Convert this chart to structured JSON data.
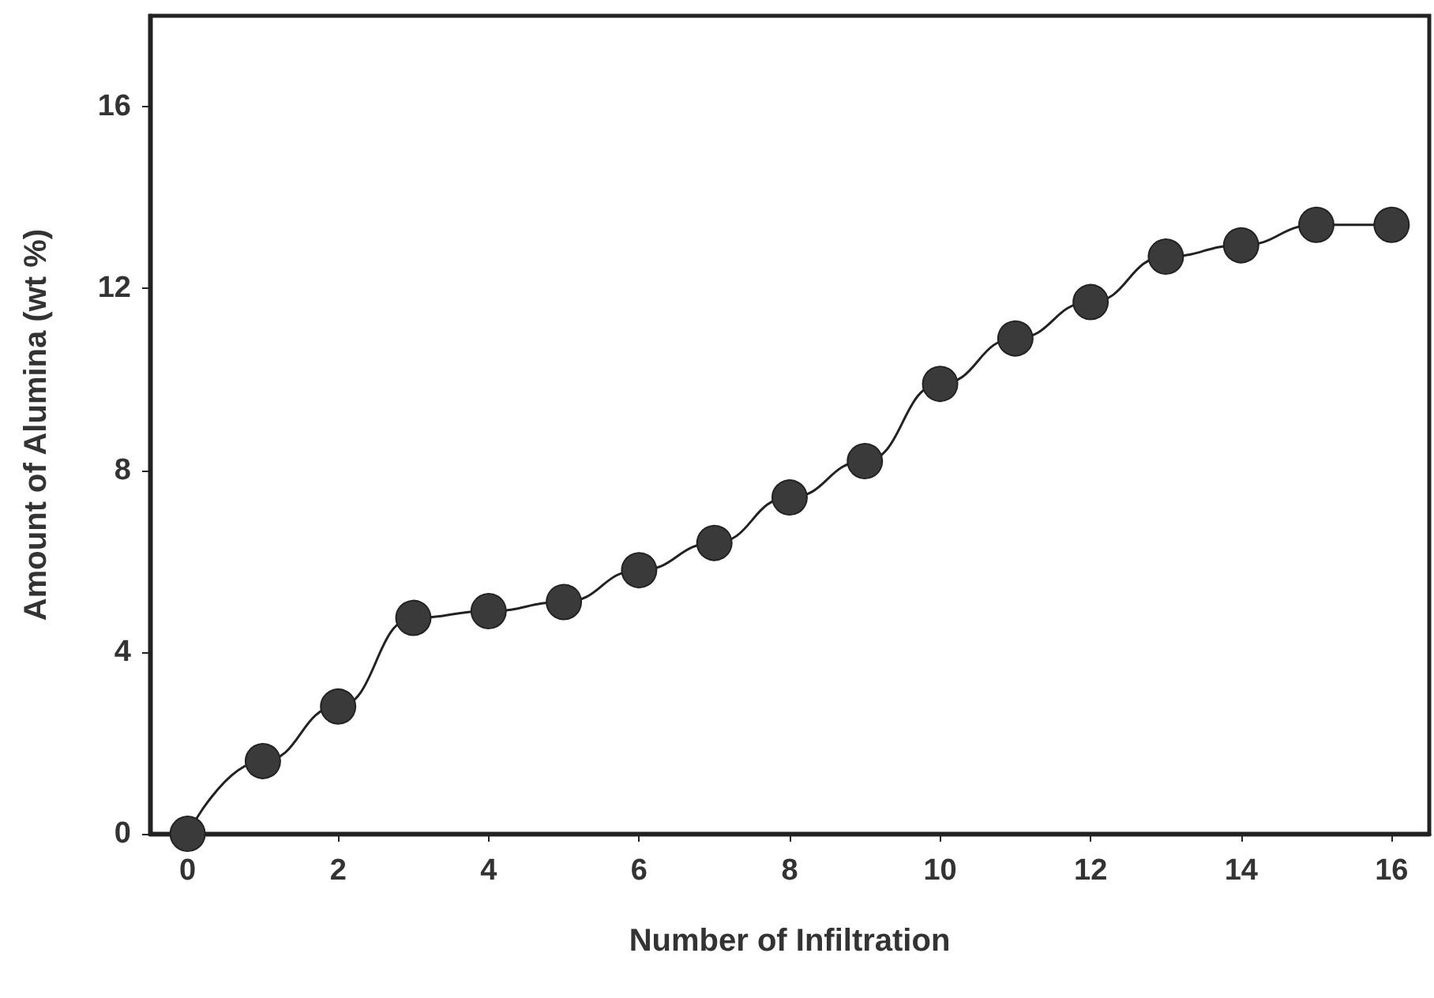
{
  "chart_data": {
    "type": "line",
    "xlabel": "Number of Infiltration",
    "ylabel": "Amount of Alumina (wt %)",
    "x": [
      0,
      1,
      2,
      3,
      4,
      5,
      6,
      7,
      8,
      9,
      10,
      11,
      12,
      13,
      14,
      15,
      16
    ],
    "series": [
      {
        "color": "#3a3a3a",
        "values": [
          0,
          1.6,
          2.8,
          4.75,
          4.9,
          5.1,
          5.8,
          6.4,
          7.4,
          8.2,
          9.9,
          10.9,
          11.7,
          12.7,
          12.95,
          13.4,
          13.4
        ]
      }
    ],
    "xlim": [
      -0.5,
      16.5
    ],
    "xticks": [
      0,
      2,
      4,
      6,
      8,
      10,
      12,
      14,
      16
    ],
    "ylim": [
      0,
      18
    ],
    "yticks": [
      0,
      4,
      8,
      12,
      16
    ],
    "marker": "circle",
    "line_style": "solid",
    "grid": false
  }
}
